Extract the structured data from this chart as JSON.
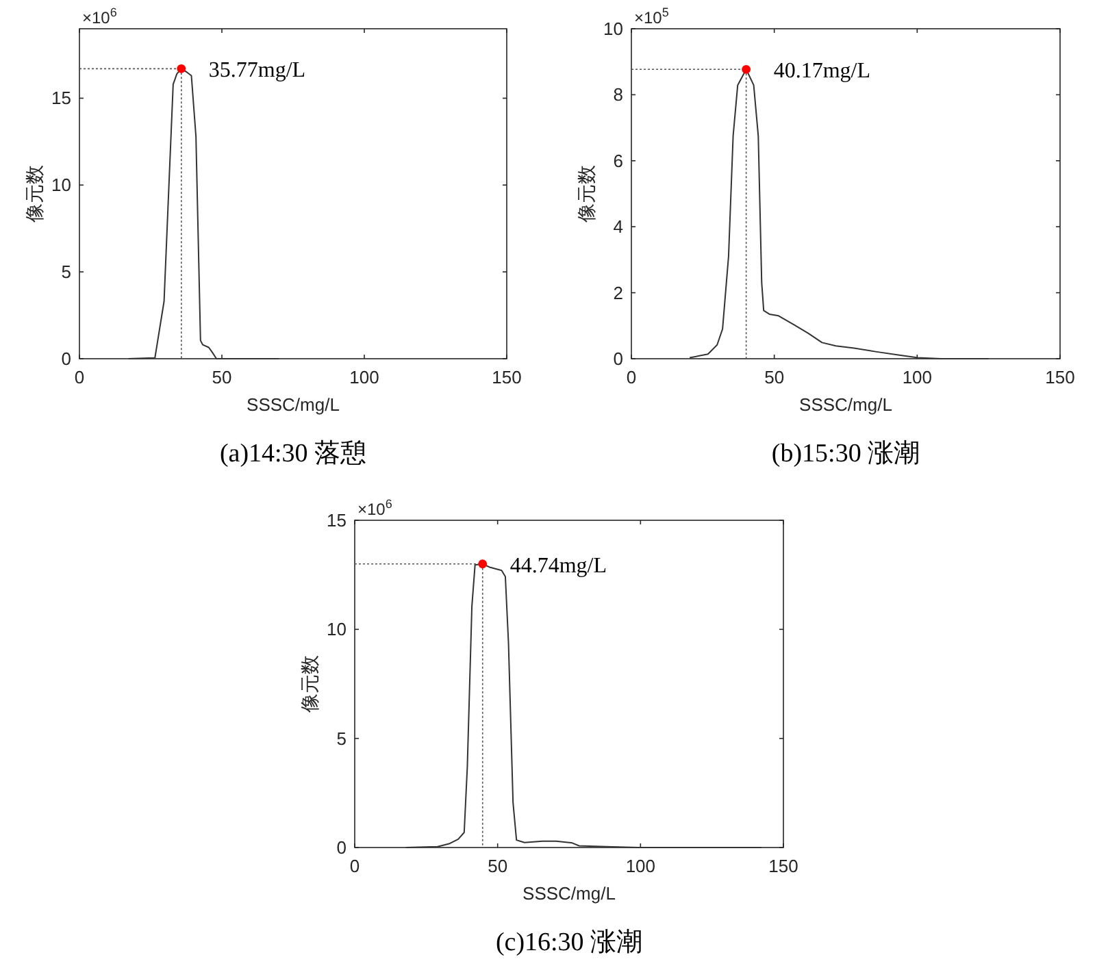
{
  "chart_data": [
    {
      "type": "line",
      "title": "(a)14:30 落憩",
      "xlabel": "SSSC/mg/L",
      "ylabel": "像元数",
      "xlim": [
        0,
        150
      ],
      "xticks": [
        0,
        50,
        100,
        150
      ],
      "ylim": [
        0,
        19
      ],
      "yticks": [
        0,
        5,
        10,
        15
      ],
      "series": [
        {
          "color": "#333333",
          "x": [
            17.2,
            26.5,
            29.7,
            32.9,
            34.2,
            35.77,
            37.7,
            39.3,
            40.9,
            42.5,
            43.3,
            45.4,
            46.5,
            48.1,
            70
          ],
          "values": [
            0,
            0.05,
            3.3,
            15.8,
            16.4,
            16.7,
            16.5,
            16.3,
            12.8,
            1.05,
            0.8,
            0.65,
            0.4,
            0,
            0
          ]
        },
        {
          "color": "#555555",
          "line_style": "dotted",
          "x": [
            0,
            35.77
          ],
          "values": [
            16.7,
            16.7
          ]
        },
        {
          "color": "#555555",
          "line_style": "dotted",
          "x": [
            35.77,
            35.77
          ],
          "values": [
            16.7,
            0
          ]
        },
        {
          "type": "scatter",
          "color": "#ff0000",
          "marker": "circle",
          "x": [
            35.77
          ],
          "values": [
            16.7
          ]
        }
      ],
      "annotations": [
        {
          "text": "35.77mg/L",
          "x": 35.77,
          "y": 16.7
        },
        "×10$^{6}$"
      ]
    },
    {
      "type": "line",
      "title": "(b)15:30 涨潮",
      "xlabel": "SSSC/mg/L",
      "ylabel": "像元数",
      "xlim": [
        0,
        150
      ],
      "xticks": [
        0,
        50,
        100,
        150
      ],
      "ylim": [
        0,
        10
      ],
      "yticks": [
        0,
        2,
        4,
        6,
        8,
        10
      ],
      "series": [
        {
          "color": "#333333",
          "x": [
            20.4,
            26.8,
            30,
            31.9,
            34,
            35.6,
            37.2,
            40.17,
            42.8,
            44.4,
            45.6,
            46.3,
            48.3,
            51.5,
            57.1,
            61.9,
            66.7,
            71.5,
            77.9,
            85.8,
            93.8,
            100.2,
            108.2,
            125
          ],
          "values": [
            0.03,
            0.14,
            0.42,
            0.9,
            3.1,
            6.75,
            8.29,
            8.77,
            8.29,
            6.75,
            2.3,
            1.46,
            1.35,
            1.3,
            1.02,
            0.77,
            0.49,
            0.39,
            0.32,
            0.21,
            0.11,
            0.03,
            0,
            0
          ]
        },
        {
          "color": "#555555",
          "line_style": "dotted",
          "x": [
            0,
            40.17
          ],
          "values": [
            8.77,
            8.77
          ]
        },
        {
          "color": "#555555",
          "line_style": "dotted",
          "x": [
            40.17,
            40.17
          ],
          "values": [
            8.77,
            0
          ]
        },
        {
          "type": "scatter",
          "color": "#ff0000",
          "marker": "circle",
          "x": [
            40.17
          ],
          "values": [
            8.77
          ]
        }
      ],
      "annotations": [
        {
          "text": "40.17mg/L",
          "x": 40.17,
          "y": 8.77
        },
        "×10$^{5}$"
      ]
    },
    {
      "type": "line",
      "title": "(c)16:30 涨潮",
      "xlabel": "SSSC/mg/L",
      "ylabel": "像元数",
      "xlim": [
        0,
        150
      ],
      "xticks": [
        0,
        50,
        100,
        150
      ],
      "ylim": [
        0,
        15
      ],
      "yticks": [
        0,
        5,
        10,
        15
      ],
      "series": [
        {
          "color": "#333333",
          "x": [
            17.9,
            29,
            33,
            36.2,
            38.3,
            39.4,
            41,
            42.1,
            44.74,
            47.4,
            51.4,
            52.7,
            53.8,
            55.4,
            56.6,
            59.4,
            65.7,
            70.5,
            76.1,
            78.5,
            88,
            99.2,
            142.3
          ],
          "values": [
            0,
            0.04,
            0.17,
            0.38,
            0.69,
            3.7,
            11.06,
            12.95,
            13.0,
            12.84,
            12.7,
            12.42,
            9.39,
            2.05,
            0.34,
            0.23,
            0.29,
            0.29,
            0.21,
            0.08,
            0.04,
            0,
            0
          ]
        },
        {
          "color": "#555555",
          "line_style": "dotted",
          "x": [
            0,
            44.74
          ],
          "values": [
            13.0,
            13.0
          ]
        },
        {
          "color": "#555555",
          "line_style": "dotted",
          "x": [
            44.74,
            44.74
          ],
          "values": [
            13.0,
            0
          ]
        },
        {
          "type": "scatter",
          "color": "#ff0000",
          "marker": "circle",
          "x": [
            44.74
          ],
          "values": [
            13.0
          ]
        }
      ],
      "annotations": [
        {
          "text": "44.74mg/L",
          "x": 44.74,
          "y": 13.0
        },
        "×10$^{6}$"
      ]
    }
  ]
}
